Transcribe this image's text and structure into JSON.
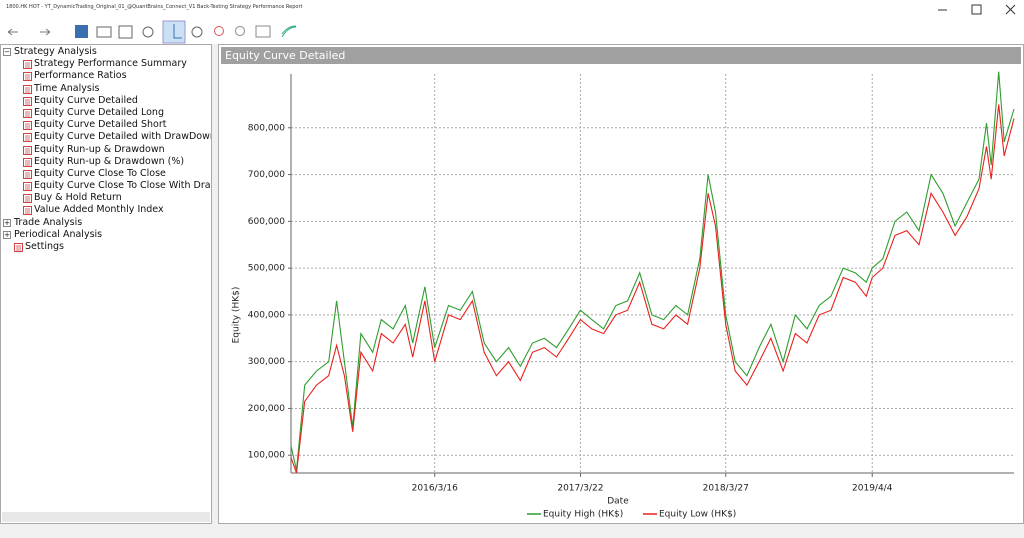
{
  "window": {
    "title": "1800.HK HOT - YT_DynamicTrading_Original_01_@QuantBrains_Connect_V1 Back-Testing Strategy Performance Report"
  },
  "tree": [
    {
      "label": "Strategy Analysis",
      "children": [
        "Strategy Performance Summary",
        "Performance Ratios",
        "Time Analysis",
        "Equity Curve Detailed",
        "Equity Curve Detailed Long",
        "Equity Curve Detailed Short",
        "Equity Curve Detailed with DrawDown",
        "Equity Run-up & Drawdown",
        "Equity Run-up & Drawdown (%)",
        "Equity Curve Close To Close",
        "Equity Curve Close To Close With Drawdown",
        "Buy & Hold Return",
        "Value Added Monthly Index"
      ]
    },
    {
      "label": "Trade Analysis",
      "children": []
    },
    {
      "label": "Periodical Analysis",
      "children": []
    },
    {
      "label": "Settings",
      "children": []
    }
  ],
  "panel": {
    "title": "Equity Curve Detailed"
  },
  "chart_data": {
    "type": "line",
    "x_label": "Date",
    "y_label": "Equity (HK$)",
    "x": [
      "2015/3/16",
      "2015/3/30",
      "2015/4/20",
      "2015/5/20",
      "2015/6/20",
      "2015/7/10",
      "2015/7/30",
      "2015/8/20",
      "2015/9/10",
      "2015/10/10",
      "2015/11/1",
      "2015/12/1",
      "2016/1/1",
      "2016/1/20",
      "2016/2/20",
      "2016/3/16",
      "2016/4/20",
      "2016/5/20",
      "2016/6/20",
      "2016/7/20",
      "2016/8/20",
      "2016/9/20",
      "2016/10/20",
      "2016/11/20",
      "2016/12/20",
      "2017/1/20",
      "2017/2/20",
      "2017/3/22",
      "2017/4/20",
      "2017/5/20",
      "2017/6/20",
      "2017/7/20",
      "2017/8/20",
      "2017/9/20",
      "2017/10/20",
      "2017/11/20",
      "2017/12/20",
      "2018/1/20",
      "2018/2/10",
      "2018/3/1",
      "2018/3/27",
      "2018/4/20",
      "2018/5/20",
      "2018/6/20",
      "2018/7/20",
      "2018/8/20",
      "2018/9/20",
      "2018/10/20",
      "2018/11/20",
      "2018/12/20",
      "2019/1/20",
      "2019/2/20",
      "2019/3/20",
      "2019/4/4",
      "2019/5/1",
      "2019/6/1",
      "2019/7/1",
      "2019/8/1",
      "2019/9/1",
      "2019/10/1",
      "2019/11/1",
      "2019/12/1",
      "2020/1/1",
      "2020/1/20",
      "2020/2/1",
      "2020/2/20",
      "2020/3/5",
      "2020/3/30"
    ],
    "series": [
      {
        "name": "Equity High (HK$)",
        "color": "#2e9e2e",
        "values": [
          120000,
          68000,
          250000,
          280000,
          300000,
          430000,
          300000,
          160000,
          360000,
          320000,
          390000,
          370000,
          420000,
          340000,
          460000,
          330000,
          420000,
          410000,
          450000,
          340000,
          300000,
          330000,
          290000,
          340000,
          350000,
          330000,
          370000,
          410000,
          390000,
          370000,
          420000,
          430000,
          490000,
          400000,
          390000,
          420000,
          400000,
          520000,
          700000,
          620000,
          400000,
          300000,
          270000,
          330000,
          380000,
          300000,
          400000,
          370000,
          420000,
          440000,
          500000,
          490000,
          470000,
          500000,
          520000,
          600000,
          620000,
          580000,
          700000,
          660000,
          590000,
          640000,
          690000,
          810000,
          720000,
          920000,
          770000,
          840000
        ]
      },
      {
        "name": "Equity Low (HK$)",
        "color": "#e8211d",
        "values": [
          95000,
          62000,
          215000,
          250000,
          270000,
          335000,
          270000,
          150000,
          320000,
          280000,
          360000,
          340000,
          380000,
          310000,
          430000,
          300000,
          400000,
          390000,
          430000,
          320000,
          270000,
          300000,
          260000,
          320000,
          330000,
          310000,
          350000,
          390000,
          370000,
          360000,
          400000,
          410000,
          470000,
          380000,
          370000,
          400000,
          380000,
          500000,
          660000,
          590000,
          380000,
          280000,
          250000,
          300000,
          350000,
          280000,
          360000,
          340000,
          400000,
          410000,
          480000,
          470000,
          440000,
          480000,
          500000,
          570000,
          580000,
          550000,
          660000,
          620000,
          570000,
          610000,
          670000,
          760000,
          690000,
          850000,
          740000,
          820000
        ]
      }
    ],
    "xlim": [
      "2015/3/16",
      "2020/3/30"
    ],
    "xticks": [
      "2016/3/16",
      "2017/3/22",
      "2018/3/27",
      "2019/4/4"
    ],
    "ylim": [
      62000,
      915000
    ],
    "yticks": [
      {
        "value": 100000,
        "label": "100,000"
      },
      {
        "value": 200000,
        "label": "200,000"
      },
      {
        "value": 300000,
        "label": "300,000"
      },
      {
        "value": 400000,
        "label": "400,000"
      },
      {
        "value": 500000,
        "label": "500,000"
      },
      {
        "value": 600000,
        "label": "600,000"
      },
      {
        "value": 700000,
        "label": "700,000"
      },
      {
        "value": 800000,
        "label": "800,000"
      }
    ],
    "grid": true,
    "legend": "bottom"
  }
}
